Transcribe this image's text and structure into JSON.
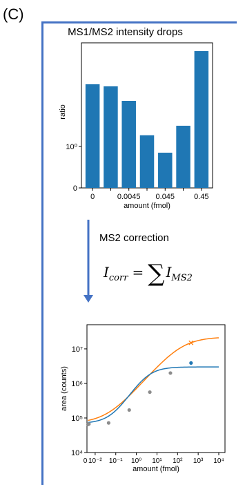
{
  "panel_label": "(C)",
  "title": "MS1/MS2 intensity drops",
  "step_label": "MS2 correction",
  "formula": {
    "lhs": "I",
    "lhs_sub": "corr",
    "equals": "=",
    "sum": "∑",
    "rhs": "I",
    "rhs_sub": "MS2"
  },
  "colors": {
    "frame": "#4472c4",
    "bar": "#1f77b4",
    "blue": "#1f77b4",
    "orange": "#ff7f0e",
    "gray": "#8c8c8c"
  },
  "chart_data": [
    {
      "type": "bar",
      "categories": [
        "0",
        "",
        "0.0045",
        "",
        "0.045",
        "",
        "0.45"
      ],
      "values": [
        2.5,
        2.45,
        2.1,
        1.27,
        0.85,
        1.5,
        3.3
      ],
      "xlabel": "amount (fmol)",
      "ylabel": "ratio",
      "yscale": "log",
      "yticks": [
        {
          "label": "0",
          "value": 0
        },
        {
          "label": "10⁰",
          "value": 1
        }
      ],
      "ylim": [
        0,
        3.5
      ],
      "grid": false
    },
    {
      "type": "line",
      "xlabel": "amount (fmol)",
      "ylabel": "area (counts)",
      "xscale": "log",
      "yscale": "log",
      "xlim": [
        0.004,
        20000
      ],
      "ylim": [
        10000,
        50000000
      ],
      "xticks": [
        "10⁻²",
        "10⁻¹",
        "10⁰",
        "10¹",
        "10²",
        "10³",
        "10⁴"
      ],
      "xticks_overlap_label": "0",
      "yticks": [
        "10⁴",
        "10⁵",
        "10⁶",
        "10⁷"
      ],
      "points_gray": [
        [
          0.0045,
          65000
        ],
        [
          0.005,
          67000
        ],
        [
          0.045,
          72000
        ],
        [
          0.45,
          170000
        ],
        [
          4.5,
          560000
        ],
        [
          45,
          2000000
        ]
      ],
      "point_blue": [
        450,
        3900000
      ],
      "point_orange_x": [
        450,
        15000000
      ],
      "curve_blue": {
        "bottom": 70000,
        "top": 3000000,
        "ec50": 3,
        "hill": 1
      },
      "curve_orange": {
        "bottom": 70000,
        "top": 22000000,
        "ec50": 150,
        "hill": 0.7
      },
      "grid": false
    }
  ]
}
